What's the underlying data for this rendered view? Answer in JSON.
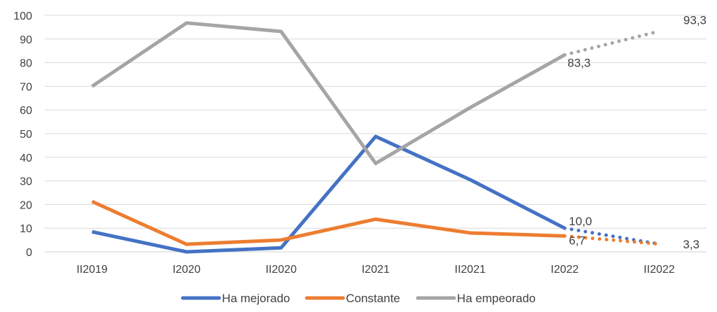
{
  "chart_data": {
    "type": "line",
    "title": "",
    "xlabel": "",
    "ylabel": "",
    "ylim": [
      0,
      100
    ],
    "yticks": [
      0,
      10,
      20,
      30,
      40,
      50,
      60,
      70,
      80,
      90,
      100
    ],
    "grid": "horizontal",
    "legend_position": "bottom",
    "categories": [
      "II2019",
      "I2020",
      "II2020",
      "I2021",
      "II2021",
      "I2022",
      "II2022"
    ],
    "projection_from_index": 5,
    "series": [
      {
        "name": "Ha mejorado",
        "color": "#4472C4",
        "values": [
          8.5,
          0,
          1.7,
          48.8,
          30.5,
          10.0,
          3.3
        ],
        "labels": [
          null,
          null,
          null,
          null,
          null,
          "10,0",
          "3,3"
        ]
      },
      {
        "name": "Constante",
        "color": "#ED7D31",
        "values": [
          21.3,
          3.2,
          5.0,
          13.8,
          8.0,
          6.7,
          3.3
        ],
        "labels": [
          null,
          null,
          null,
          null,
          null,
          "6,7",
          null
        ]
      },
      {
        "name": "Ha empeorado",
        "color": "#A5A5A5",
        "values": [
          70.0,
          96.8,
          93.2,
          37.4,
          61.0,
          83.3,
          93.3
        ],
        "labels": [
          null,
          null,
          null,
          null,
          null,
          "83,3",
          "93,3"
        ]
      }
    ]
  }
}
